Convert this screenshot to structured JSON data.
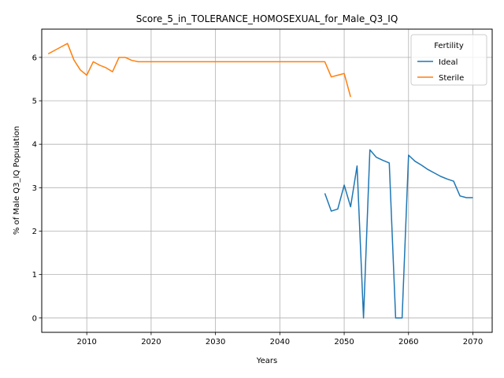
{
  "chart_data": {
    "type": "line",
    "title": "Score_5_in_TOLERANCE_HOMOSEXUAL_for_Male_Q3_IQ",
    "xlabel": "Years",
    "ylabel": "% of Male Q3_IQ Population",
    "xlim": [
      2003,
      2073
    ],
    "ylim": [
      -0.33,
      6.65
    ],
    "xticks": [
      2010,
      2020,
      2030,
      2040,
      2050,
      2060,
      2070
    ],
    "yticks": [
      0,
      1,
      2,
      3,
      4,
      5,
      6
    ],
    "grid": true,
    "legend": {
      "title": "Fertility",
      "position": "top-right"
    },
    "series": [
      {
        "name": "Ideal",
        "color": "#1f77b4",
        "x": [
          2047,
          2048,
          2049,
          2050,
          2051,
          2052,
          2053,
          2054,
          2055,
          2056,
          2057,
          2058,
          2059,
          2060,
          2061,
          2062,
          2063,
          2064,
          2065,
          2066,
          2067,
          2068,
          2069,
          2070
        ],
        "y": [
          2.87,
          2.46,
          2.51,
          3.06,
          2.56,
          3.5,
          0.0,
          3.87,
          3.7,
          3.63,
          3.57,
          0.0,
          0.0,
          3.75,
          3.61,
          3.52,
          3.42,
          3.34,
          3.26,
          3.2,
          3.15,
          2.81,
          2.77,
          2.77
        ]
      },
      {
        "name": "Sterile",
        "color": "#ff7f0e",
        "x": [
          2004,
          2005,
          2006,
          2007,
          2008,
          2009,
          2010,
          2011,
          2012,
          2013,
          2014,
          2015,
          2016,
          2017,
          2018,
          2019,
          2020,
          2025,
          2030,
          2035,
          2040,
          2045,
          2047,
          2048,
          2049,
          2050,
          2051
        ],
        "y": [
          6.08,
          6.16,
          6.24,
          6.32,
          5.94,
          5.71,
          5.59,
          5.9,
          5.82,
          5.76,
          5.67,
          6.0,
          6.0,
          5.93,
          5.9,
          5.9,
          5.9,
          5.9,
          5.9,
          5.9,
          5.9,
          5.9,
          5.9,
          5.55,
          5.59,
          5.63,
          5.09
        ]
      }
    ]
  }
}
